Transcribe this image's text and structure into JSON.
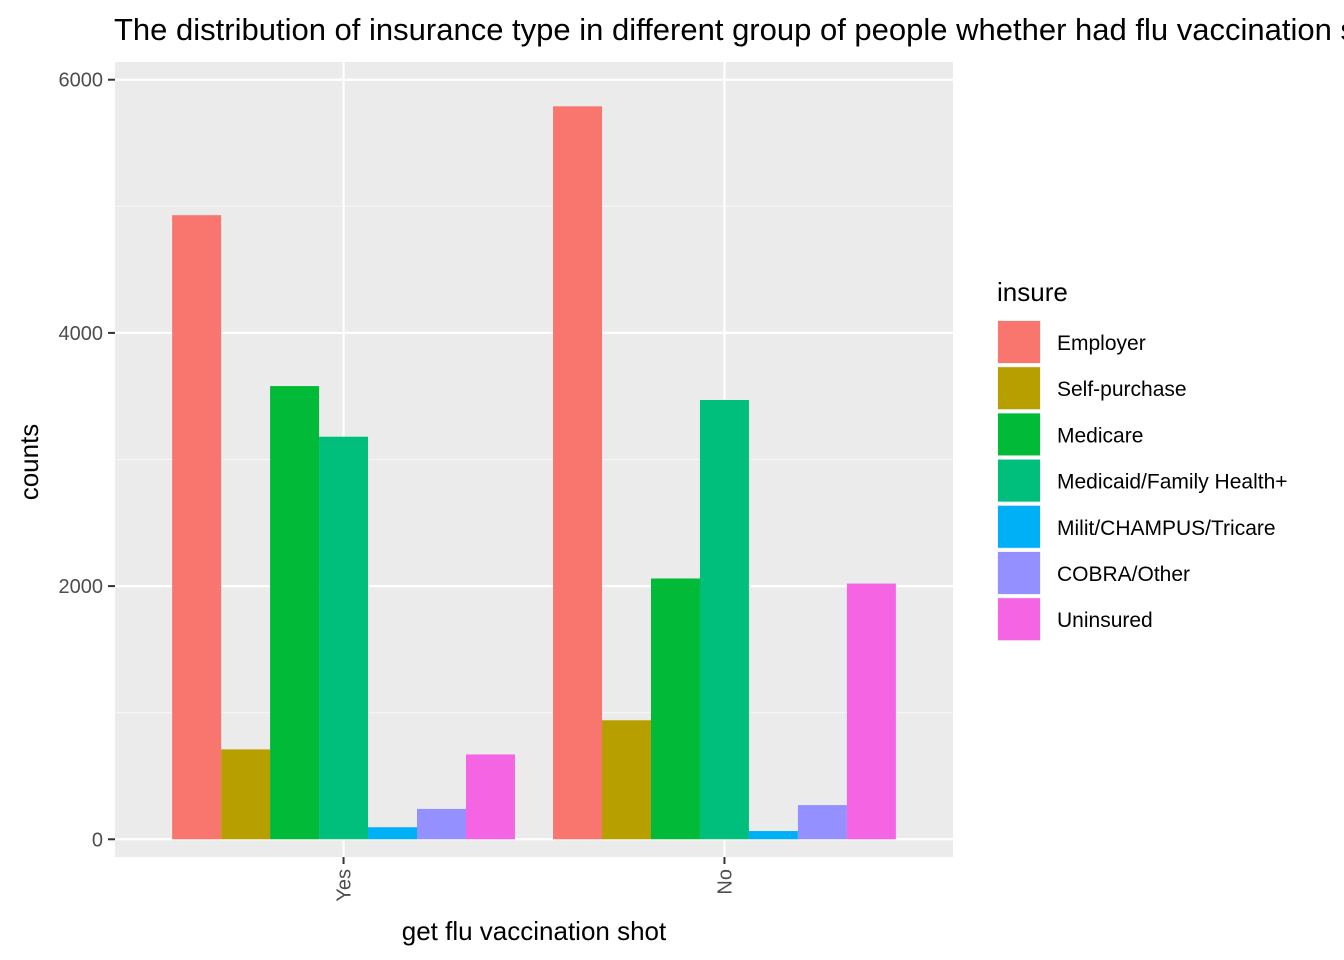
{
  "chart_data": {
    "type": "bar",
    "title": "The distribution of insurance type in different group of people whether had flu vaccination shot",
    "xlabel": "get flu vaccination shot",
    "ylabel": "counts",
    "categories": [
      "Yes",
      "No"
    ],
    "ylim": [
      -140,
      6140
    ],
    "yticks": [
      0,
      2000,
      4000,
      6000
    ],
    "grid": true,
    "legend": {
      "title": "insure",
      "position": "right"
    },
    "series": [
      {
        "name": "Employer",
        "color": "#F8766D",
        "values": [
          4930,
          5790
        ]
      },
      {
        "name": "Self-purchase",
        "color": "#B79F00",
        "values": [
          710,
          940
        ]
      },
      {
        "name": "Medicare",
        "color": "#00BA38",
        "values": [
          3580,
          2060
        ]
      },
      {
        "name": "Medicaid/Family Health+",
        "color": "#00BF7D",
        "values": [
          3180,
          3470
        ]
      },
      {
        "name": "Milit/CHAMPUS/Tricare",
        "color": "#00B0F6",
        "values": [
          95,
          65
        ]
      },
      {
        "name": "COBRA/Other",
        "color": "#9590FF",
        "values": [
          240,
          270
        ]
      },
      {
        "name": "Uninsured",
        "color": "#F564E3",
        "values": [
          670,
          2020
        ]
      }
    ]
  }
}
